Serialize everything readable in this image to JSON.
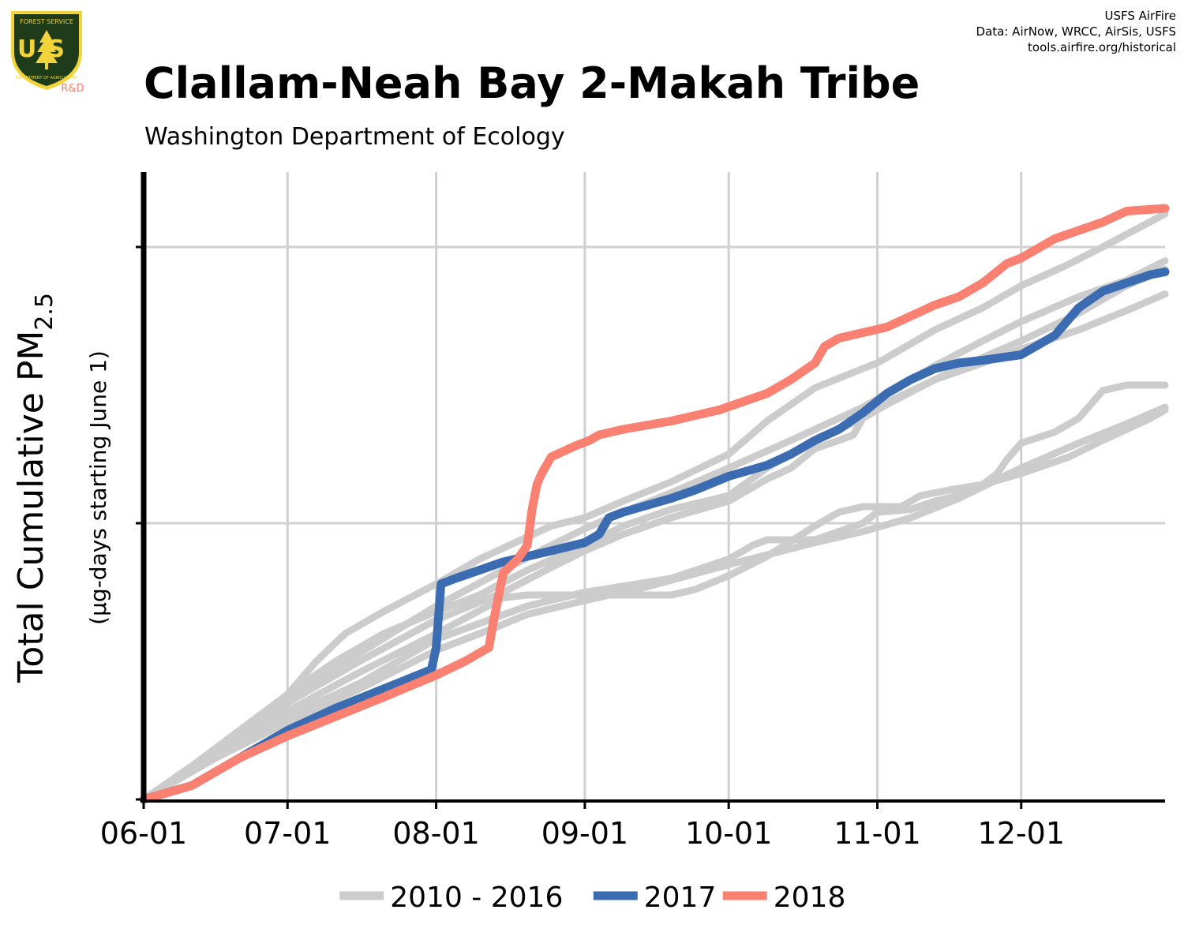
{
  "header": {
    "title": "Clallam-Neah Bay 2-Makah Tribe",
    "subtitle": "Washington Department of Ecology",
    "credits": [
      "USFS AirFire",
      "Data: AirNow, WRCC, AirSis, USFS",
      "tools.airfire.org/historical"
    ]
  },
  "logo": {
    "text_top": "FOREST SERVICE",
    "text_main": "US",
    "text_bottom": "DEPARTMENT OF AGRICULTURE",
    "badge": "R&D",
    "colors": {
      "shield": "#1e3b1a",
      "gold": "#f2d33a",
      "badge": "#f08070"
    }
  },
  "chart_data": {
    "type": "line",
    "title": "Clallam-Neah Bay 2-Makah Tribe",
    "subtitle": "Washington Department of Ecology",
    "xlabel": "",
    "ylabel": "Total Cumulative PM2.5",
    "ylabel_main": "Total Cumulative PM",
    "ylabel_sub": "2.5",
    "ylabel_note": "(µg-days starting June 1)",
    "x_ticks": [
      "06-01",
      "07-01",
      "08-01",
      "09-01",
      "10-01",
      "11-01",
      "12-01"
    ],
    "x_tick_days": [
      0,
      30,
      61,
      92,
      122,
      153,
      183
    ],
    "xlim": [
      0,
      213
    ],
    "y_tick_count": 3,
    "grid": true,
    "legend_position": "bottom",
    "colors": {
      "history": "#cccccc",
      "2017": "#3b6bb0",
      "2018": "#fa8072"
    },
    "legend": [
      {
        "label": "2010 - 2016",
        "color": "#cccccc"
      },
      {
        "label": "2017",
        "color": "#3b6bb0"
      },
      {
        "label": "2018",
        "color": "#fa8072"
      }
    ],
    "series": [
      {
        "name": "2010 - 2016",
        "group": "history",
        "points": [
          [
            0,
            0
          ],
          [
            10,
            0.12
          ],
          [
            20,
            0.25
          ],
          [
            30,
            0.38
          ],
          [
            36,
            0.5
          ],
          [
            42,
            0.6
          ],
          [
            50,
            0.68
          ],
          [
            61,
            0.78
          ],
          [
            70,
            0.87
          ],
          [
            85,
            0.99
          ],
          [
            92,
            1.02
          ],
          [
            100,
            1.08
          ],
          [
            110,
            1.15
          ],
          [
            122,
            1.25
          ],
          [
            130,
            1.37
          ],
          [
            140,
            1.49
          ],
          [
            150,
            1.56
          ],
          [
            153,
            1.58
          ],
          [
            165,
            1.7
          ],
          [
            175,
            1.78
          ],
          [
            183,
            1.86
          ],
          [
            192,
            1.93
          ],
          [
            200,
            2.0
          ],
          [
            213,
            2.12
          ]
        ]
      },
      {
        "name": "2010 - 2016",
        "group": "history",
        "points": [
          [
            0,
            0
          ],
          [
            15,
            0.15
          ],
          [
            30,
            0.28
          ],
          [
            45,
            0.4
          ],
          [
            61,
            0.54
          ],
          [
            73,
            0.62
          ],
          [
            80,
            0.67
          ],
          [
            92,
            0.72
          ],
          [
            105,
            0.77
          ],
          [
            122,
            0.85
          ],
          [
            140,
            0.93
          ],
          [
            150,
            0.97
          ],
          [
            160,
            1.02
          ],
          [
            170,
            1.09
          ],
          [
            183,
            1.2
          ],
          [
            195,
            1.29
          ],
          [
            205,
            1.36
          ],
          [
            213,
            1.42
          ]
        ]
      },
      {
        "name": "2010 - 2016",
        "group": "history",
        "points": [
          [
            0,
            0
          ],
          [
            15,
            0.15
          ],
          [
            30,
            0.3
          ],
          [
            45,
            0.42
          ],
          [
            61,
            0.58
          ],
          [
            80,
            0.7
          ],
          [
            92,
            0.75
          ],
          [
            110,
            0.8
          ],
          [
            122,
            0.87
          ],
          [
            127,
            0.92
          ],
          [
            130,
            0.94
          ],
          [
            135,
            0.94
          ],
          [
            140,
            0.94
          ],
          [
            145,
            0.97
          ],
          [
            150,
            1.0
          ],
          [
            153,
            1.04
          ],
          [
            160,
            1.05
          ],
          [
            165,
            1.08
          ],
          [
            170,
            1.1
          ],
          [
            175,
            1.14
          ],
          [
            183,
            1.18
          ],
          [
            193,
            1.24
          ],
          [
            200,
            1.3
          ],
          [
            210,
            1.38
          ],
          [
            213,
            1.41
          ]
        ]
      },
      {
        "name": "2010 - 2016",
        "group": "history",
        "points": [
          [
            0,
            0
          ],
          [
            15,
            0.16
          ],
          [
            30,
            0.32
          ],
          [
            45,
            0.46
          ],
          [
            61,
            0.6
          ],
          [
            75,
            0.73
          ],
          [
            80,
            0.74
          ],
          [
            90,
            0.74
          ],
          [
            100,
            0.74
          ],
          [
            110,
            0.74
          ],
          [
            115,
            0.76
          ],
          [
            122,
            0.81
          ],
          [
            130,
            0.88
          ],
          [
            140,
            0.99
          ],
          [
            145,
            1.04
          ],
          [
            150,
            1.06
          ],
          [
            155,
            1.06
          ],
          [
            158,
            1.06
          ],
          [
            162,
            1.1
          ],
          [
            168,
            1.12
          ],
          [
            175,
            1.14
          ],
          [
            178,
            1.18
          ],
          [
            180,
            1.23
          ],
          [
            183,
            1.29
          ],
          [
            190,
            1.33
          ],
          [
            195,
            1.38
          ],
          [
            200,
            1.48
          ],
          [
            205,
            1.5
          ],
          [
            213,
            1.5
          ]
        ]
      },
      {
        "name": "2010 - 2016",
        "group": "history",
        "points": [
          [
            0,
            0
          ],
          [
            15,
            0.17
          ],
          [
            30,
            0.35
          ],
          [
            45,
            0.5
          ],
          [
            61,
            0.65
          ],
          [
            75,
            0.75
          ],
          [
            85,
            0.84
          ],
          [
            92,
            0.9
          ],
          [
            100,
            0.96
          ],
          [
            110,
            1.02
          ],
          [
            122,
            1.08
          ],
          [
            130,
            1.16
          ],
          [
            135,
            1.2
          ],
          [
            140,
            1.27
          ],
          [
            145,
            1.3
          ],
          [
            148,
            1.32
          ],
          [
            150,
            1.38
          ],
          [
            153,
            1.42
          ],
          [
            165,
            1.52
          ],
          [
            175,
            1.58
          ],
          [
            183,
            1.63
          ],
          [
            195,
            1.7
          ],
          [
            205,
            1.77
          ],
          [
            213,
            1.83
          ]
        ]
      },
      {
        "name": "2010 - 2016",
        "group": "history",
        "points": [
          [
            0,
            0
          ],
          [
            15,
            0.17
          ],
          [
            30,
            0.35
          ],
          [
            45,
            0.53
          ],
          [
            61,
            0.7
          ],
          [
            75,
            0.83
          ],
          [
            85,
            0.92
          ],
          [
            92,
            0.98
          ],
          [
            100,
            1.04
          ],
          [
            110,
            1.11
          ],
          [
            122,
            1.2
          ],
          [
            135,
            1.3
          ],
          [
            150,
            1.42
          ],
          [
            153,
            1.45
          ],
          [
            165,
            1.57
          ],
          [
            175,
            1.66
          ],
          [
            183,
            1.73
          ],
          [
            195,
            1.82
          ],
          [
            205,
            1.88
          ],
          [
            213,
            1.95
          ]
        ]
      },
      {
        "name": "2010 - 2016",
        "group": "history",
        "points": [
          [
            0,
            0
          ],
          [
            10,
            0.12
          ],
          [
            20,
            0.25
          ],
          [
            28,
            0.33
          ],
          [
            35,
            0.44
          ],
          [
            40,
            0.5
          ],
          [
            45,
            0.55
          ],
          [
            50,
            0.6
          ],
          [
            61,
            0.68
          ],
          [
            70,
            0.74
          ],
          [
            80,
            0.83
          ],
          [
            92,
            0.92
          ],
          [
            100,
            0.99
          ],
          [
            110,
            1.05
          ],
          [
            122,
            1.1
          ],
          [
            130,
            1.2
          ],
          [
            140,
            1.3
          ],
          [
            150,
            1.38
          ],
          [
            155,
            1.43
          ],
          [
            165,
            1.52
          ],
          [
            175,
            1.6
          ],
          [
            183,
            1.66
          ],
          [
            195,
            1.76
          ],
          [
            205,
            1.86
          ],
          [
            213,
            1.92
          ]
        ]
      },
      {
        "name": "2017",
        "group": "y2017",
        "points": [
          [
            0,
            0
          ],
          [
            10,
            0.05
          ],
          [
            20,
            0.15
          ],
          [
            30,
            0.25
          ],
          [
            40,
            0.33
          ],
          [
            50,
            0.4
          ],
          [
            60,
            0.47
          ],
          [
            61,
            0.55
          ],
          [
            62,
            0.78
          ],
          [
            65,
            0.8
          ],
          [
            70,
            0.83
          ],
          [
            75,
            0.86
          ],
          [
            80,
            0.88
          ],
          [
            85,
            0.9
          ],
          [
            92,
            0.93
          ],
          [
            95,
            0.96
          ],
          [
            97,
            1.02
          ],
          [
            100,
            1.04
          ],
          [
            110,
            1.09
          ],
          [
            115,
            1.12
          ],
          [
            122,
            1.17
          ],
          [
            130,
            1.21
          ],
          [
            135,
            1.25
          ],
          [
            140,
            1.3
          ],
          [
            145,
            1.34
          ],
          [
            150,
            1.4
          ],
          [
            155,
            1.47
          ],
          [
            160,
            1.52
          ],
          [
            165,
            1.56
          ],
          [
            170,
            1.58
          ],
          [
            175,
            1.59
          ],
          [
            183,
            1.61
          ],
          [
            190,
            1.68
          ],
          [
            195,
            1.78
          ],
          [
            200,
            1.84
          ],
          [
            205,
            1.87
          ],
          [
            210,
            1.9
          ],
          [
            213,
            1.91
          ]
        ]
      },
      {
        "name": "2018",
        "group": "y2018",
        "points": [
          [
            0,
            0
          ],
          [
            10,
            0.05
          ],
          [
            20,
            0.15
          ],
          [
            30,
            0.23
          ],
          [
            40,
            0.3
          ],
          [
            50,
            0.37
          ],
          [
            61,
            0.45
          ],
          [
            67,
            0.5
          ],
          [
            72,
            0.55
          ],
          [
            73,
            0.65
          ],
          [
            75,
            0.82
          ],
          [
            78,
            0.87
          ],
          [
            80,
            0.92
          ],
          [
            81,
            1.05
          ],
          [
            82,
            1.14
          ],
          [
            83,
            1.18
          ],
          [
            85,
            1.24
          ],
          [
            90,
            1.28
          ],
          [
            93,
            1.3
          ],
          [
            95,
            1.32
          ],
          [
            100,
            1.34
          ],
          [
            110,
            1.37
          ],
          [
            120,
            1.41
          ],
          [
            125,
            1.44
          ],
          [
            130,
            1.47
          ],
          [
            135,
            1.52
          ],
          [
            140,
            1.58
          ],
          [
            142,
            1.64
          ],
          [
            145,
            1.67
          ],
          [
            150,
            1.69
          ],
          [
            155,
            1.71
          ],
          [
            160,
            1.75
          ],
          [
            165,
            1.79
          ],
          [
            170,
            1.82
          ],
          [
            175,
            1.87
          ],
          [
            180,
            1.94
          ],
          [
            183,
            1.96
          ],
          [
            190,
            2.03
          ],
          [
            195,
            2.06
          ],
          [
            200,
            2.09
          ],
          [
            205,
            2.13
          ],
          [
            213,
            2.14
          ]
        ]
      }
    ]
  }
}
